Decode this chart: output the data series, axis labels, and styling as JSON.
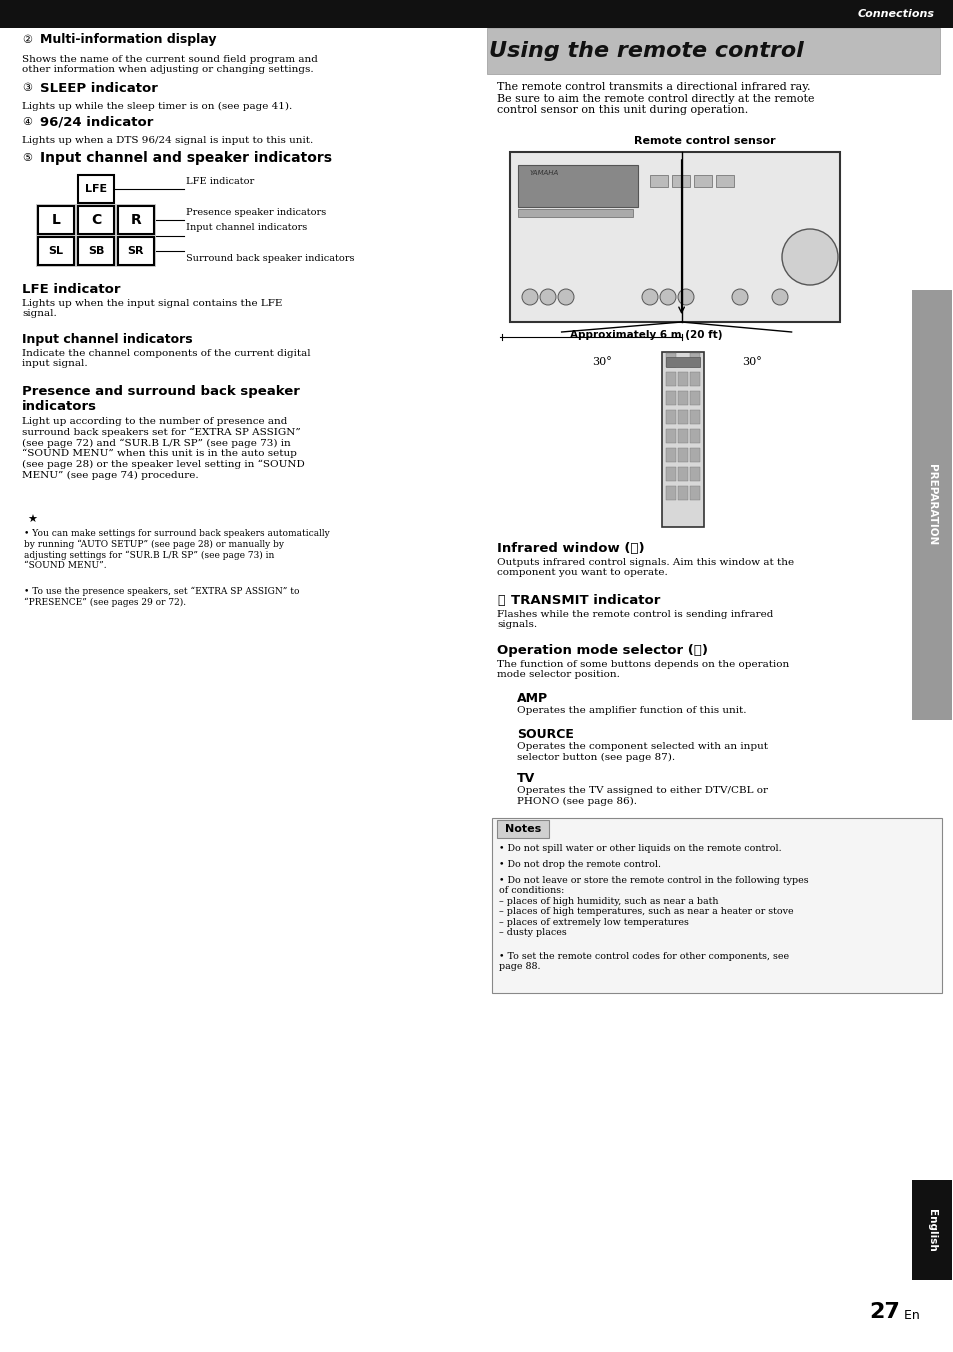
{
  "page_width": 9.54,
  "page_height": 13.52,
  "bg_color": "#ffffff",
  "header_bar_color": "#111111",
  "header_text": "Connections",
  "header_text_color": "#ffffff",
  "using_remote_title": "Using the remote control",
  "section21_icon": "②",
  "section21_title": "Multi-information display",
  "section21_body": "Shows the name of the current sound field program and\nother information when adjusting or changing settings.",
  "section22_icon": "③",
  "section22_title": "SLEEP indicator",
  "section22_body": "Lights up while the sleep timer is on (see page 41).",
  "section23_icon": "④",
  "section23_title": "96/24 indicator",
  "section23_body": "Lights up when a DTS 96/24 signal is input to this unit.",
  "section24_icon": "⑤",
  "section24_title": "Input channel and speaker indicators",
  "lfe_indicator_label": "LFE indicator",
  "presence_label": "Presence speaker indicators",
  "input_channel_label": "Input channel indicators",
  "surround_label": "Surround back speaker indicators",
  "lfe_subsection_title": "LFE indicator",
  "lfe_subsection_body": "Lights up when the input signal contains the LFE\nsignal.",
  "input_channel_subsection_title": "Input channel indicators",
  "input_channel_subsection_body": "Indicate the channel components of the current digital\ninput signal.",
  "presence_surround_title": "Presence and surround back speaker\nindicators",
  "presence_surround_body": "Light up according to the number of presence and\nsurround back speakers set for “EXTRA SP ASSIGN”\n(see page 72) and “SUR.B L/R SP” (see page 73) in\n“SOUND MENU” when this unit is in the auto setup\n(see page 28) or the speaker level setting in “SOUND\nMENU” (see page 74) procedure.",
  "note_bullet1": "You can make settings for surround back speakers automatically\nby running “AUTO SETUP” (see page 28) or manually by\nadjusting settings for “SUR.B L/R SP” (see page 73) in\n“SOUND MENU”.",
  "note_bullet2": "To use the presence speakers, set “EXTRA SP ASSIGN” to\n“PRESENCE” (see pages 29 or 72).",
  "remote_body": "The remote control transmits a directional infrared ray.\nBe sure to aim the remote control directly at the remote\ncontrol sensor on this unit during operation.",
  "remote_sensor_label": "Remote control sensor",
  "approx_label": "Approximately 6 m (20 ft)",
  "deg30_label": "30°",
  "infrared_title": "Infrared window (⒪)",
  "infrared_body": "Outputs infrared control signals. Aim this window at the\ncomponent you want to operate.",
  "transmit_prefix": "Ⓦ",
  "transmit_title": "TRANSMIT indicator",
  "transmit_body": "Flashes while the remote control is sending infrared\nsignals.",
  "operation_title": "Operation mode selector (⒫)",
  "operation_body": "The function of some buttons depends on the operation\nmode selector position.",
  "amp_title": "AMP",
  "amp_body": "Operates the amplifier function of this unit.",
  "source_title": "SOURCE",
  "source_body": "Operates the component selected with an input\nselector button (see page 87).",
  "tv_title": "TV",
  "tv_body": "Operates the TV assigned to either DTV/CBL or\nPHONO (see page 86).",
  "notes_title": "Notes",
  "notes_b1": "Do not spill water or other liquids on the remote control.",
  "notes_b2": "Do not drop the remote control.",
  "notes_b3": "Do not leave or store the remote control in the following types\nof conditions:\n– places of high humidity, such as near a bath\n– places of high temperatures, such as near a heater or stove\n– places of extremely low temperatures\n– dusty places",
  "notes_b4": "To set the remote control codes for other components, see\npage 88.",
  "page_number_large": "27",
  "page_number_small": " En",
  "preparation_sidebar": "PREPARATION",
  "english_sidebar": "English"
}
